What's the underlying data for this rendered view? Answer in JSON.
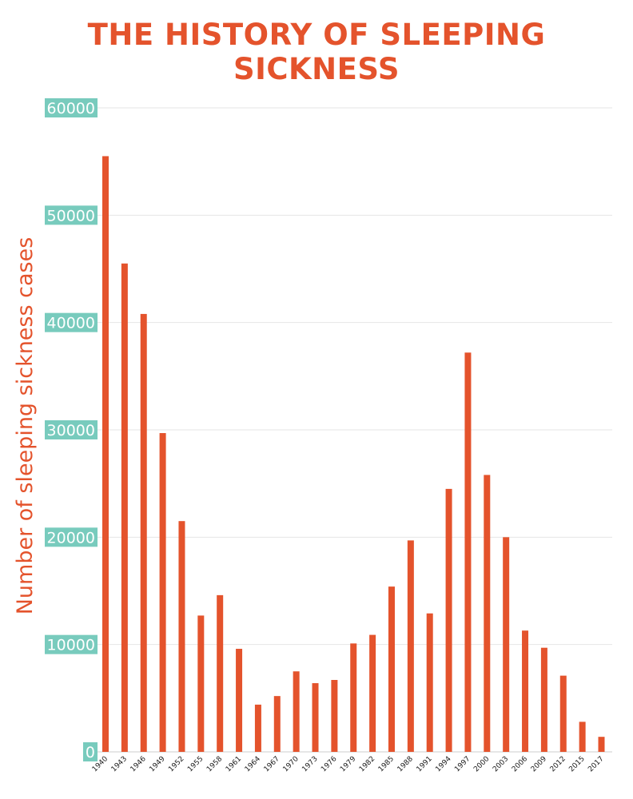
{
  "chart_data": {
    "type": "bar",
    "title": "THE HISTORY OF SLEEPING SICKNESS",
    "xlabel": "",
    "ylabel": "Number of sleeping sickness cases",
    "ylim": [
      0,
      60000
    ],
    "yticks": [
      0,
      10000,
      20000,
      30000,
      40000,
      50000,
      60000
    ],
    "grid": true,
    "categories": [
      "1940",
      "1943",
      "1946",
      "1949",
      "1952",
      "1955",
      "1958",
      "1961",
      "1964",
      "1967",
      "1970",
      "1973",
      "1976",
      "1979",
      "1982",
      "1985",
      "1988",
      "1991",
      "1994",
      "1997",
      "2000",
      "2003",
      "2006",
      "2009",
      "2012",
      "2015",
      "2017"
    ],
    "values": [
      55500,
      45500,
      40800,
      29700,
      21500,
      12700,
      14600,
      9600,
      4400,
      5200,
      7500,
      6400,
      6700,
      10100,
      10900,
      15400,
      19700,
      12900,
      24500,
      37200,
      25800,
      20000,
      11300,
      9700,
      7100,
      2800,
      1400
    ]
  },
  "colors": {
    "bar": "#e4532c",
    "title": "#e4532c",
    "ylabel": "#e4532c",
    "tick_bg": "#78cbbd",
    "tick_text": "#ffffff",
    "grid": "#e6e6e6",
    "xtick_text": "#1a1a1a"
  }
}
